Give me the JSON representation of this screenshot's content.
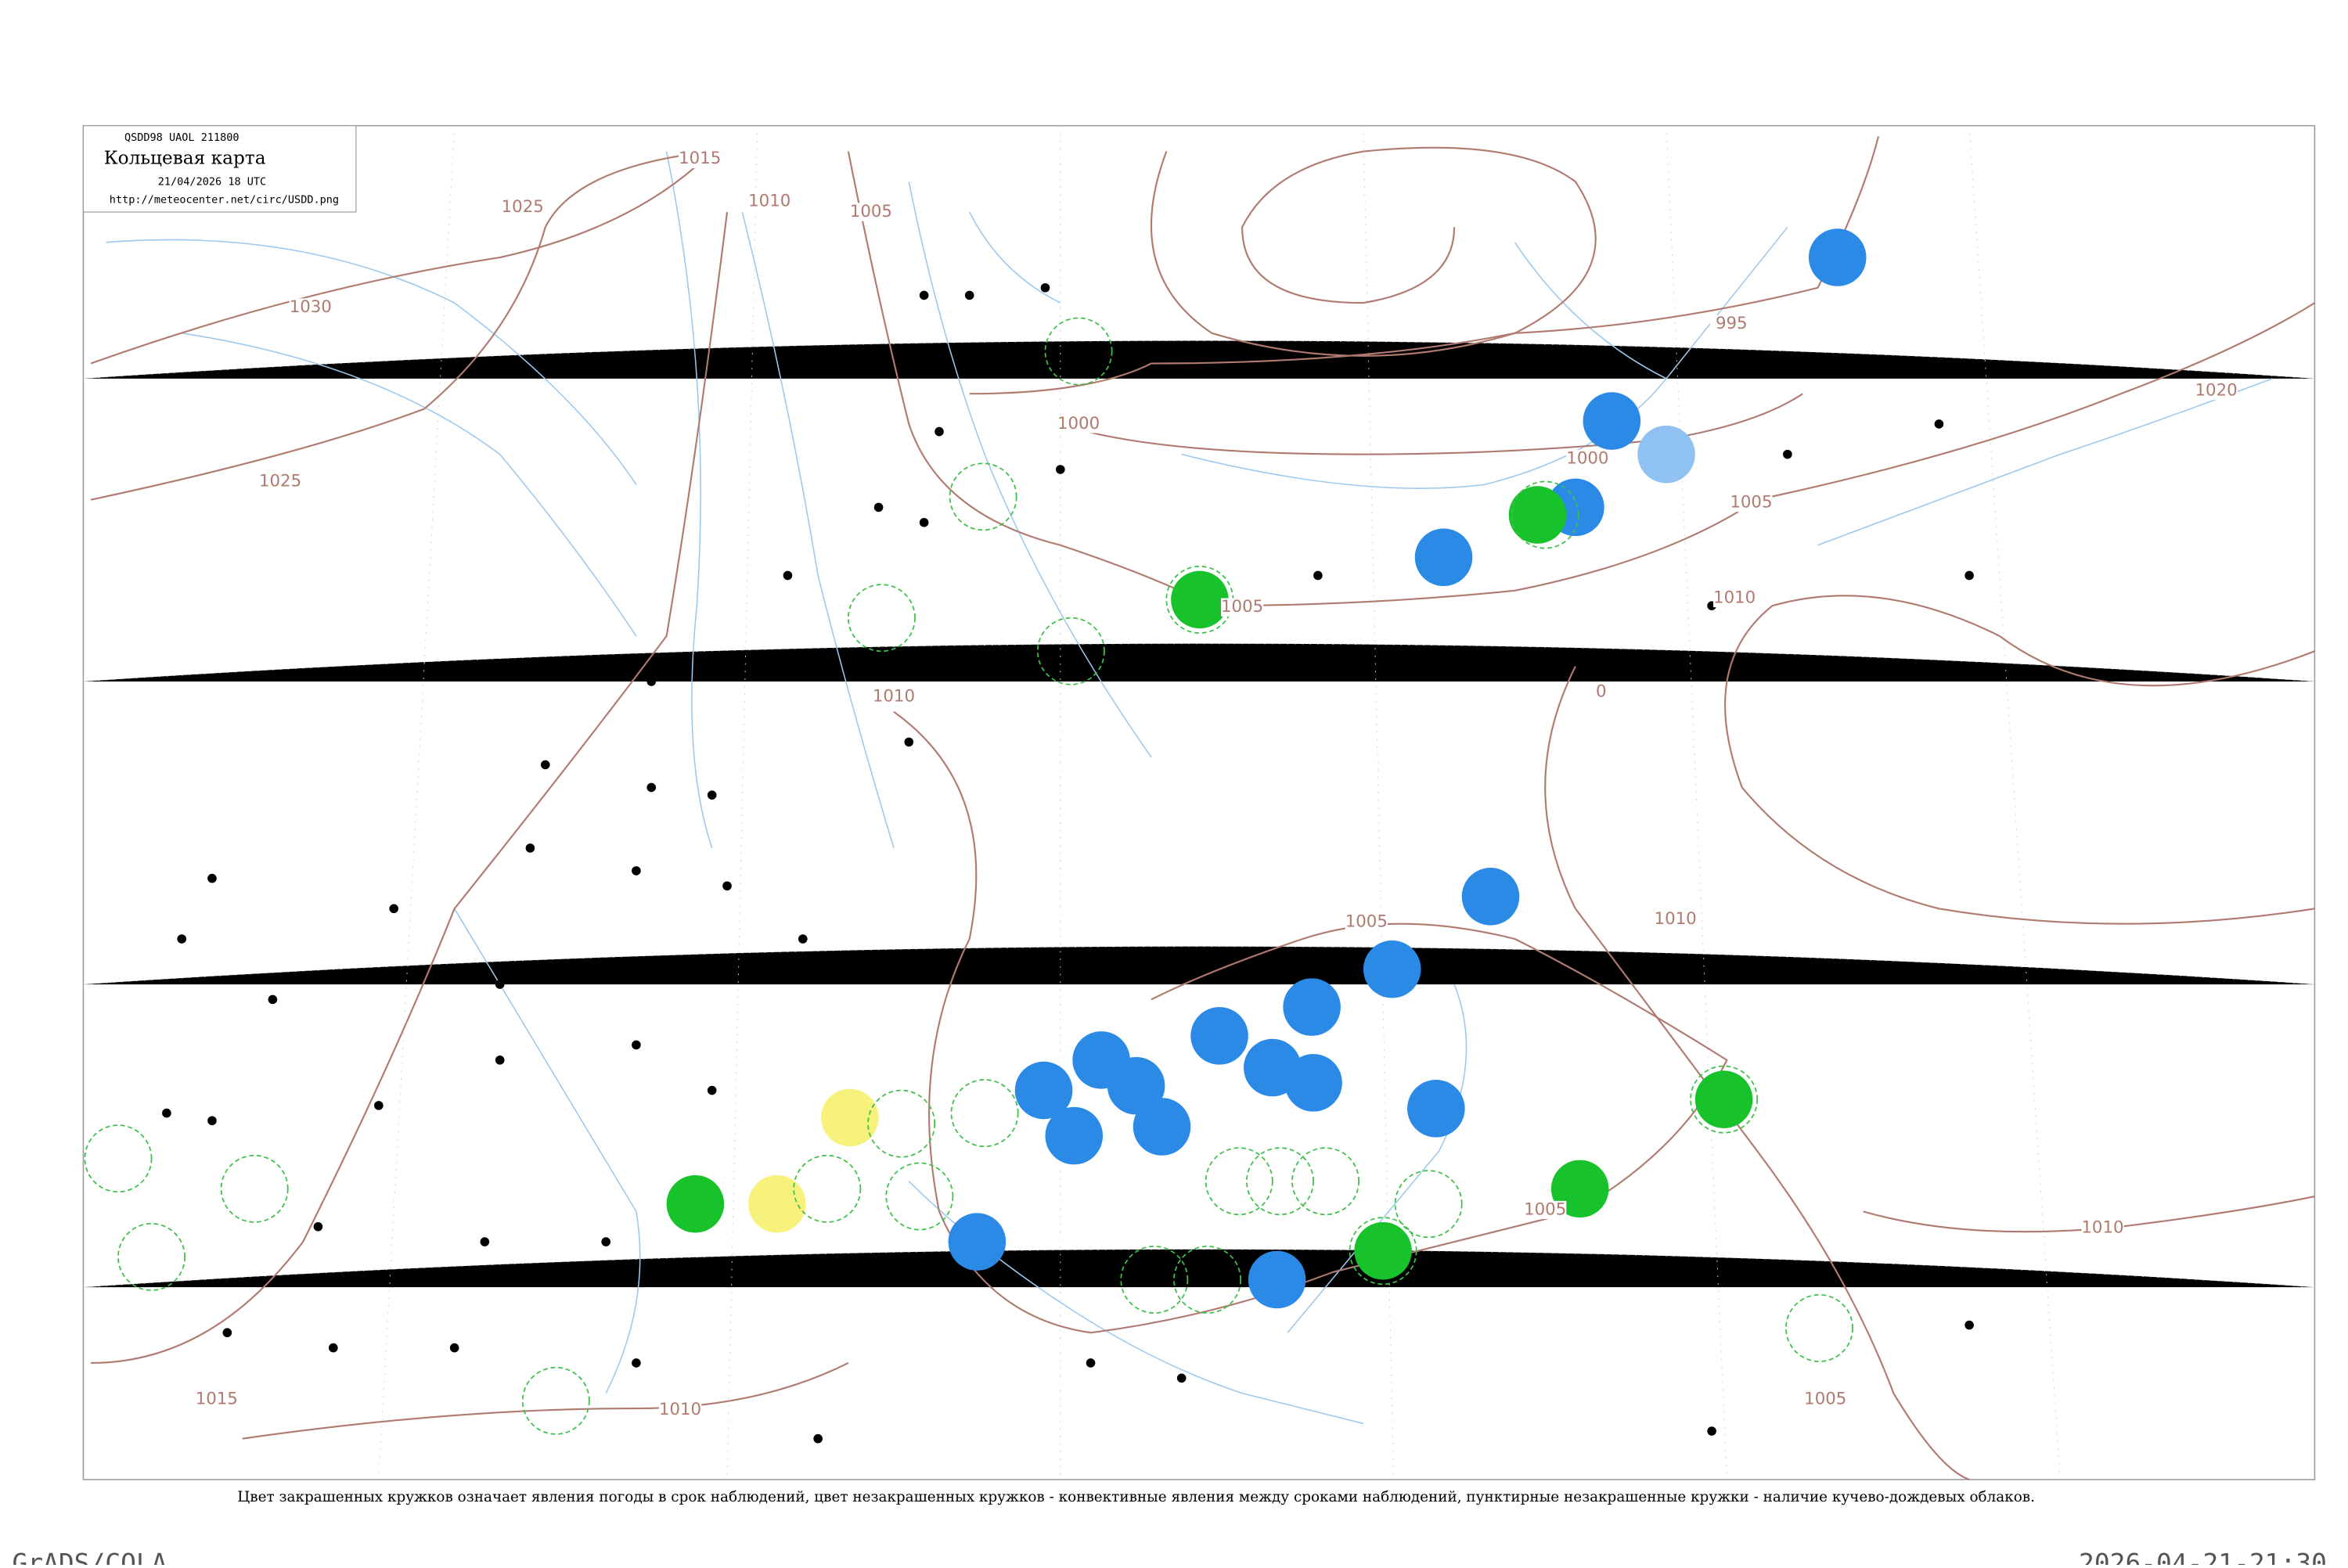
{
  "header": {
    "code": "QSDD98  UAOL  211800",
    "title": "Кольцевая карта",
    "date": "21/04/2026 18 UTC",
    "url": "http://meteocenter.net/circ/USDD.png"
  },
  "isobar_labels": [
    "1015",
    "1010",
    "1005",
    "1025",
    "1030",
    "1025",
    "995",
    "1000",
    "1000",
    "1005",
    "1005",
    "1010",
    "1010",
    "0",
    "1005",
    "1010",
    "1020",
    "1005",
    "1010",
    "1005",
    "1010",
    "1015"
  ],
  "caption": "Цвет закрашенных кружков означает явления погоды в срок наблюдений, цвет незакрашенных кружков - конвективные явления между сроками наблюдений, пунктирные незакрашенные кружки - наличие кучево-дождевых облаков.",
  "footer": {
    "left": "GrADS/COLA",
    "right": "2026-04-21-21:30"
  }
}
